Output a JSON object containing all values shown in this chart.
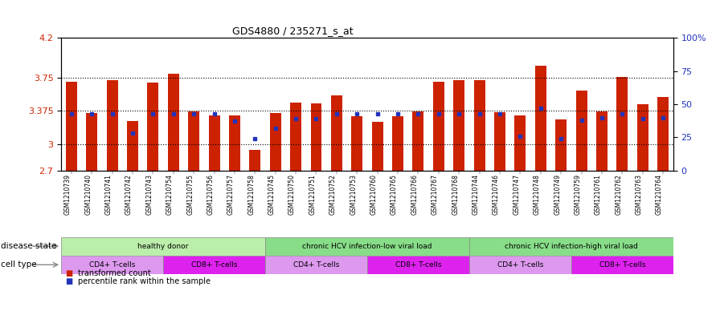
{
  "title": "GDS4880 / 235271_s_at",
  "samples": [
    "GSM1210739",
    "GSM1210740",
    "GSM1210741",
    "GSM1210742",
    "GSM1210743",
    "GSM1210754",
    "GSM1210755",
    "GSM1210756",
    "GSM1210757",
    "GSM1210758",
    "GSM1210745",
    "GSM1210750",
    "GSM1210751",
    "GSM1210752",
    "GSM1210753",
    "GSM1210760",
    "GSM1210765",
    "GSM1210766",
    "GSM1210767",
    "GSM1210768",
    "GSM1210744",
    "GSM1210746",
    "GSM1210747",
    "GSM1210748",
    "GSM1210749",
    "GSM1210759",
    "GSM1210761",
    "GSM1210762",
    "GSM1210763",
    "GSM1210764"
  ],
  "red_values": [
    3.7,
    3.35,
    3.72,
    3.26,
    3.69,
    3.79,
    3.37,
    3.32,
    3.32,
    2.93,
    3.35,
    3.47,
    3.46,
    3.55,
    3.31,
    3.25,
    3.31,
    3.37,
    3.7,
    3.72,
    3.72,
    3.36,
    3.32,
    3.88,
    3.28,
    3.6,
    3.37,
    3.76,
    3.45,
    3.53
  ],
  "blue_values": [
    43,
    43,
    43,
    28,
    43,
    43,
    43,
    43,
    37,
    24,
    32,
    39,
    39,
    43,
    43,
    43,
    43,
    43,
    43,
    43,
    43,
    43,
    26,
    47,
    24,
    38,
    40,
    43,
    39,
    40
  ],
  "ylim_left": [
    2.7,
    4.2
  ],
  "ylim_right": [
    0,
    100
  ],
  "yticks_left": [
    2.7,
    3.0,
    3.375,
    3.75,
    4.2
  ],
  "ytick_labels_left": [
    "2.7",
    "3",
    "3.375",
    "3.75",
    "4.2"
  ],
  "yticks_right": [
    0,
    25,
    50,
    75,
    100
  ],
  "ytick_labels_right": [
    "0",
    "25",
    "50",
    "75",
    "100%"
  ],
  "hlines": [
    3.0,
    3.375,
    3.75
  ],
  "bar_color": "#cc2200",
  "dot_color": "#2233bb",
  "background_color": "#ffffff",
  "xtick_bg": "#cccccc",
  "disease_states": [
    {
      "label": "healthy donor",
      "start": 0,
      "end": 9
    },
    {
      "label": "chronic HCV infection-low viral load",
      "start": 10,
      "end": 19
    },
    {
      "label": "chronic HCV infection-high viral load",
      "start": 20,
      "end": 29
    }
  ],
  "ds_colors": [
    "#bbeeaa",
    "#88dd88",
    "#88dd88"
  ],
  "cell_types": [
    {
      "label": "CD4+ T-cells",
      "start": 0,
      "end": 4
    },
    {
      "label": "CD8+ T-cells",
      "start": 5,
      "end": 9
    },
    {
      "label": "CD4+ T-cells",
      "start": 10,
      "end": 14
    },
    {
      "label": "CD8+ T-cells",
      "start": 15,
      "end": 19
    },
    {
      "label": "CD4+ T-cells",
      "start": 20,
      "end": 24
    },
    {
      "label": "CD8+ T-cells",
      "start": 25,
      "end": 29
    }
  ],
  "ct_colors": {
    "CD4+ T-cells": "#dd99ee",
    "CD8+ T-cells": "#dd22ee"
  },
  "disease_state_label": "disease state",
  "cell_type_label": "cell type",
  "legend_items": [
    {
      "label": "transformed count",
      "color": "#cc2200"
    },
    {
      "label": "percentile rank within the sample",
      "color": "#2233bb"
    }
  ]
}
